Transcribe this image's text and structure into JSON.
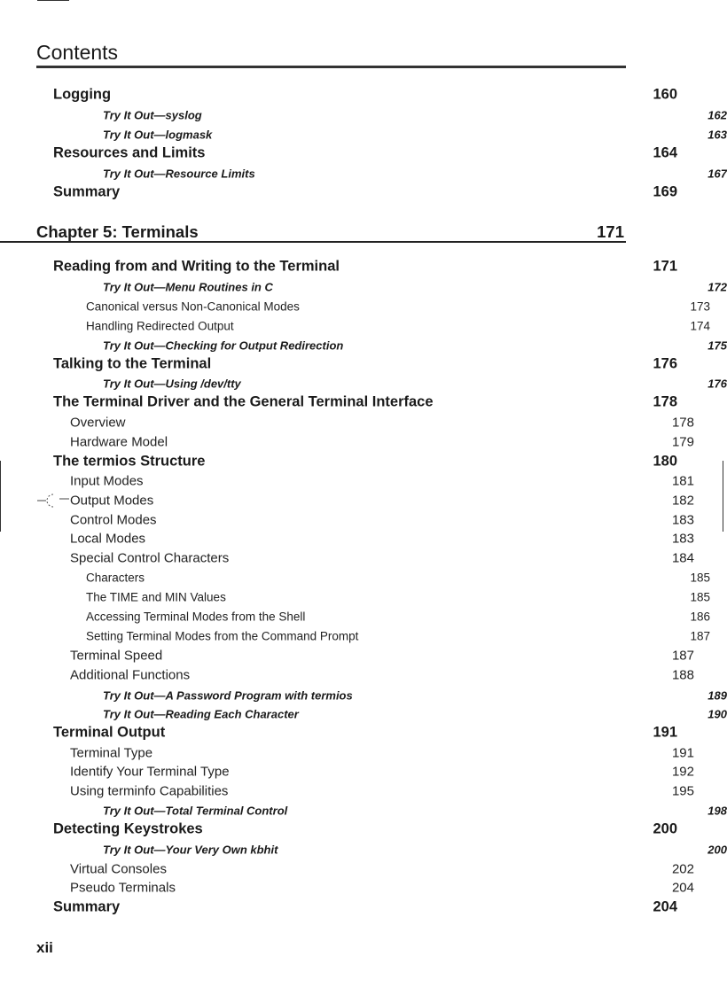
{
  "header": {
    "title": "Contents"
  },
  "entries": [
    {
      "type": "l1",
      "text": "Logging",
      "page": "160"
    },
    {
      "type": "try",
      "text": "Try It Out—syslog",
      "page": "162"
    },
    {
      "type": "try",
      "text": "Try It Out—logmask",
      "page": "163"
    },
    {
      "type": "l1",
      "text": "Resources and Limits",
      "page": "164"
    },
    {
      "type": "try",
      "text": "Try It Out—Resource Limits",
      "page": "167"
    },
    {
      "type": "l1",
      "text": "Summary",
      "page": "169"
    },
    {
      "type": "chapter",
      "text": "Chapter 5: Terminals",
      "page": "171"
    },
    {
      "type": "l1",
      "text": "Reading from and Writing to the Terminal",
      "page": "171"
    },
    {
      "type": "try",
      "text": "Try It Out—Menu Routines in C",
      "page": "172"
    },
    {
      "type": "l3",
      "text": "Canonical versus Non-Canonical Modes",
      "page": "173"
    },
    {
      "type": "l3",
      "text": "Handling Redirected Output",
      "page": "174"
    },
    {
      "type": "try",
      "text": "Try It Out—Checking for Output Redirection",
      "page": "175"
    },
    {
      "type": "l1",
      "text": "Talking to the Terminal",
      "page": "176"
    },
    {
      "type": "try",
      "text": "Try It Out—Using /dev/tty",
      "page": "176"
    },
    {
      "type": "l1",
      "text": "The Terminal Driver and the General Terminal Interface",
      "page": "178"
    },
    {
      "type": "l2",
      "text": "Overview",
      "page": "178"
    },
    {
      "type": "l2",
      "text": "Hardware Model",
      "page": "179"
    },
    {
      "type": "l1",
      "text": "The termios Structure",
      "page": "180"
    },
    {
      "type": "l2",
      "text": "Input Modes",
      "page": "181"
    },
    {
      "type": "l2",
      "text": "Output Modes",
      "page": "182"
    },
    {
      "type": "l2",
      "text": "Control Modes",
      "page": "183"
    },
    {
      "type": "l2",
      "text": "Local Modes",
      "page": "183"
    },
    {
      "type": "l2",
      "text": "Special Control Characters",
      "page": "184"
    },
    {
      "type": "l3",
      "text": "Characters",
      "page": "185"
    },
    {
      "type": "l3",
      "text": "The TIME and MIN Values",
      "page": "185"
    },
    {
      "type": "l3",
      "text": "Accessing Terminal Modes from the Shell",
      "page": "186"
    },
    {
      "type": "l3",
      "text": "Setting Terminal Modes from the Command Prompt",
      "page": "187"
    },
    {
      "type": "l2",
      "text": "Terminal Speed",
      "page": "187"
    },
    {
      "type": "l2",
      "text": "Additional Functions",
      "page": "188"
    },
    {
      "type": "try",
      "text": "Try It Out—A Password Program with termios",
      "page": "189"
    },
    {
      "type": "try",
      "text": "Try It Out—Reading Each Character",
      "page": "190"
    },
    {
      "type": "l1",
      "text": "Terminal Output",
      "page": "191"
    },
    {
      "type": "l2",
      "text": "Terminal Type",
      "page": "191"
    },
    {
      "type": "l2",
      "text": "Identify Your Terminal Type",
      "page": "192"
    },
    {
      "type": "l2",
      "text": "Using terminfo Capabilities",
      "page": "195"
    },
    {
      "type": "try",
      "text": "Try It Out—Total Terminal Control",
      "page": "198"
    },
    {
      "type": "l1",
      "text": "Detecting Keystrokes",
      "page": "200"
    },
    {
      "type": "try",
      "text": "Try It Out—Your Very Own kbhit",
      "page": "200"
    },
    {
      "type": "l2",
      "text": "Virtual Consoles",
      "page": "202"
    },
    {
      "type": "l2",
      "text": "Pseudo Terminals",
      "page": "204"
    },
    {
      "type": "l1",
      "text": "Summary",
      "page": "204"
    }
  ],
  "footer": {
    "page_number": "xii"
  }
}
